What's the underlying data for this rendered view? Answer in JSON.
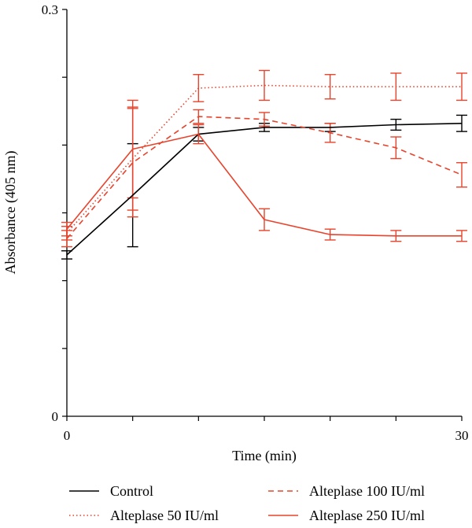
{
  "chart_data": {
    "type": "line",
    "title": "",
    "xlabel": "Time (min)",
    "ylabel": "Absorbance (405 nm)",
    "xlim": [
      0,
      30
    ],
    "ylim": [
      0,
      0.3
    ],
    "x_tick_labels": [
      "0",
      "30"
    ],
    "y_tick_labels": [
      "0",
      "0.3"
    ],
    "x_ticks": [
      0,
      5,
      10,
      15,
      20,
      25,
      30
    ],
    "y_ticks": [
      0,
      0.05,
      0.1,
      0.15,
      0.2,
      0.25,
      0.3
    ],
    "grid": false,
    "legend_position": "bottom",
    "x": [
      0,
      5,
      10,
      15,
      20,
      25,
      30
    ],
    "series": [
      {
        "name": "Control",
        "color": "#000000",
        "dash": "solid",
        "values": [
          0.119,
          0.163,
          0.208,
          0.213,
          0.213,
          0.215,
          0.216
        ],
        "errors": [
          0.003,
          0.038,
          0.005,
          0.003,
          0.003,
          0.004,
          0.006
        ]
      },
      {
        "name": "Alteplase 50 IU/ml",
        "color": "#e8432c",
        "dash": "dotted",
        "values": [
          0.135,
          0.19,
          0.242,
          0.244,
          0.243,
          0.243,
          0.243
        ],
        "errors": [
          0.005,
          0.038,
          0.01,
          0.011,
          0.009,
          0.01,
          0.01
        ]
      },
      {
        "name": "Alteplase 100 IU/ml",
        "color": "#e8432c",
        "dash": "dashed",
        "values": [
          0.131,
          0.187,
          0.221,
          0.219,
          0.209,
          0.198,
          0.178
        ],
        "errors": [
          0.006,
          0.04,
          0.005,
          0.005,
          0.007,
          0.008,
          0.009
        ]
      },
      {
        "name": "Alteplase 250 IU/ml",
        "color": "#e8432c",
        "dash": "solid",
        "values": [
          0.138,
          0.197,
          0.208,
          0.145,
          0.134,
          0.133,
          0.133
        ],
        "errors": [
          0.005,
          0.036,
          0.007,
          0.008,
          0.004,
          0.004,
          0.004
        ]
      }
    ]
  }
}
